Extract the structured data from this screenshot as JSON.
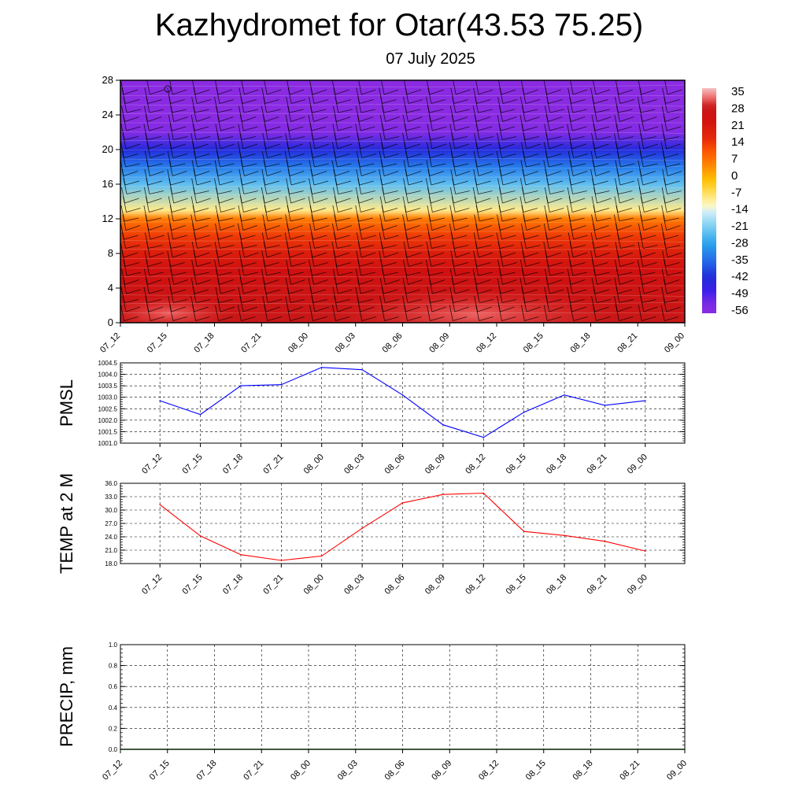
{
  "title": "Kazhydromet for Otar(43.53 75.25)",
  "subtitle": "07 July 2025",
  "colors": {
    "pmsl_line": "#0000ff",
    "temp_line": "#ff0000",
    "precip_line": "#006400",
    "grid": "#000000"
  },
  "chart_data": [
    {
      "type": "heatmap",
      "name": "vertical temperature cross-section with wind barbs",
      "y_ticks": [
        "0",
        "4",
        "8",
        "12",
        "16",
        "20",
        "24",
        "28"
      ],
      "ylim": [
        0,
        28
      ],
      "x_ticks": [
        "07_12",
        "07_15",
        "07_18",
        "07_21",
        "08_00",
        "08_03",
        "08_06",
        "08_09",
        "08_12",
        "08_15",
        "08_18",
        "08_21",
        "09_00"
      ],
      "colorbar_labels": [
        "35",
        "28",
        "21",
        "14",
        "7",
        "0",
        "-7",
        "-14",
        "-21",
        "-28",
        "-35",
        "-42",
        "-49",
        "-56"
      ],
      "colorbar_range": [
        -60,
        38
      ],
      "temperature_profile": [
        {
          "level": 0,
          "value": 30
        },
        {
          "level": 2,
          "value": 28
        },
        {
          "level": 4,
          "value": 26
        },
        {
          "level": 6,
          "value": 24
        },
        {
          "level": 8,
          "value": 20
        },
        {
          "level": 10,
          "value": 14
        },
        {
          "level": 12,
          "value": 6
        },
        {
          "level": 13,
          "value": -10
        },
        {
          "level": 16,
          "value": -25
        },
        {
          "level": 18,
          "value": -35
        },
        {
          "level": 20,
          "value": -45
        },
        {
          "level": 22,
          "value": -58
        },
        {
          "level": 24,
          "value": -60
        },
        {
          "level": 28,
          "value": -60
        }
      ],
      "wind_barbs": true,
      "grid": false
    },
    {
      "type": "line",
      "ylabel": "PMSL",
      "x": [
        "07_12",
        "07_15",
        "07_18",
        "07_21",
        "08_00",
        "08_03",
        "08_06",
        "08_09",
        "08_12",
        "08_15",
        "08_18",
        "08_21",
        "09_00"
      ],
      "series": [
        {
          "values": [
            1002.85,
            1002.25,
            1003.5,
            1003.55,
            1004.3,
            1004.2,
            1003.1,
            1001.8,
            1001.25,
            1002.35,
            1003.1,
            1002.65,
            1002.85
          ]
        }
      ],
      "ylim": [
        1001.0,
        1004.5
      ],
      "y_ticks": [
        "1001.0",
        "1001.5",
        "1002.0",
        "1002.5",
        "1003.0",
        "1003.5",
        "1004.0",
        "1004.5"
      ],
      "grid": true
    },
    {
      "type": "line",
      "ylabel": "TEMP at 2 M",
      "x": [
        "07_12",
        "07_15",
        "07_18",
        "07_21",
        "08_00",
        "08_03",
        "08_06",
        "08_09",
        "08_12",
        "08_15",
        "08_18",
        "08_21",
        "09_00"
      ],
      "series": [
        {
          "values": [
            31.2,
            24.2,
            20.0,
            18.7,
            19.7,
            25.9,
            31.6,
            33.5,
            33.8,
            25.2,
            24.3,
            23.0,
            20.8
          ]
        }
      ],
      "ylim": [
        18.0,
        36.0
      ],
      "y_ticks": [
        "18.0",
        "21.0",
        "24.0",
        "27.0",
        "30.0",
        "33.0",
        "36.0"
      ],
      "grid": true
    },
    {
      "type": "line",
      "ylabel": "PRECIP, mm",
      "x": [
        "07_12",
        "07_15",
        "07_18",
        "07_21",
        "08_00",
        "08_03",
        "08_06",
        "08_09",
        "08_12",
        "08_15",
        "08_18",
        "08_21",
        "09_00"
      ],
      "series": [
        {
          "values": [
            0,
            0,
            0,
            0,
            0,
            0,
            0,
            0,
            0,
            0,
            0,
            0,
            0
          ]
        }
      ],
      "ylim": [
        0.0,
        1.0
      ],
      "y_ticks": [
        "0.0",
        "0.2",
        "0.4",
        "0.6",
        "0.8",
        "1.0"
      ],
      "grid": true
    }
  ]
}
